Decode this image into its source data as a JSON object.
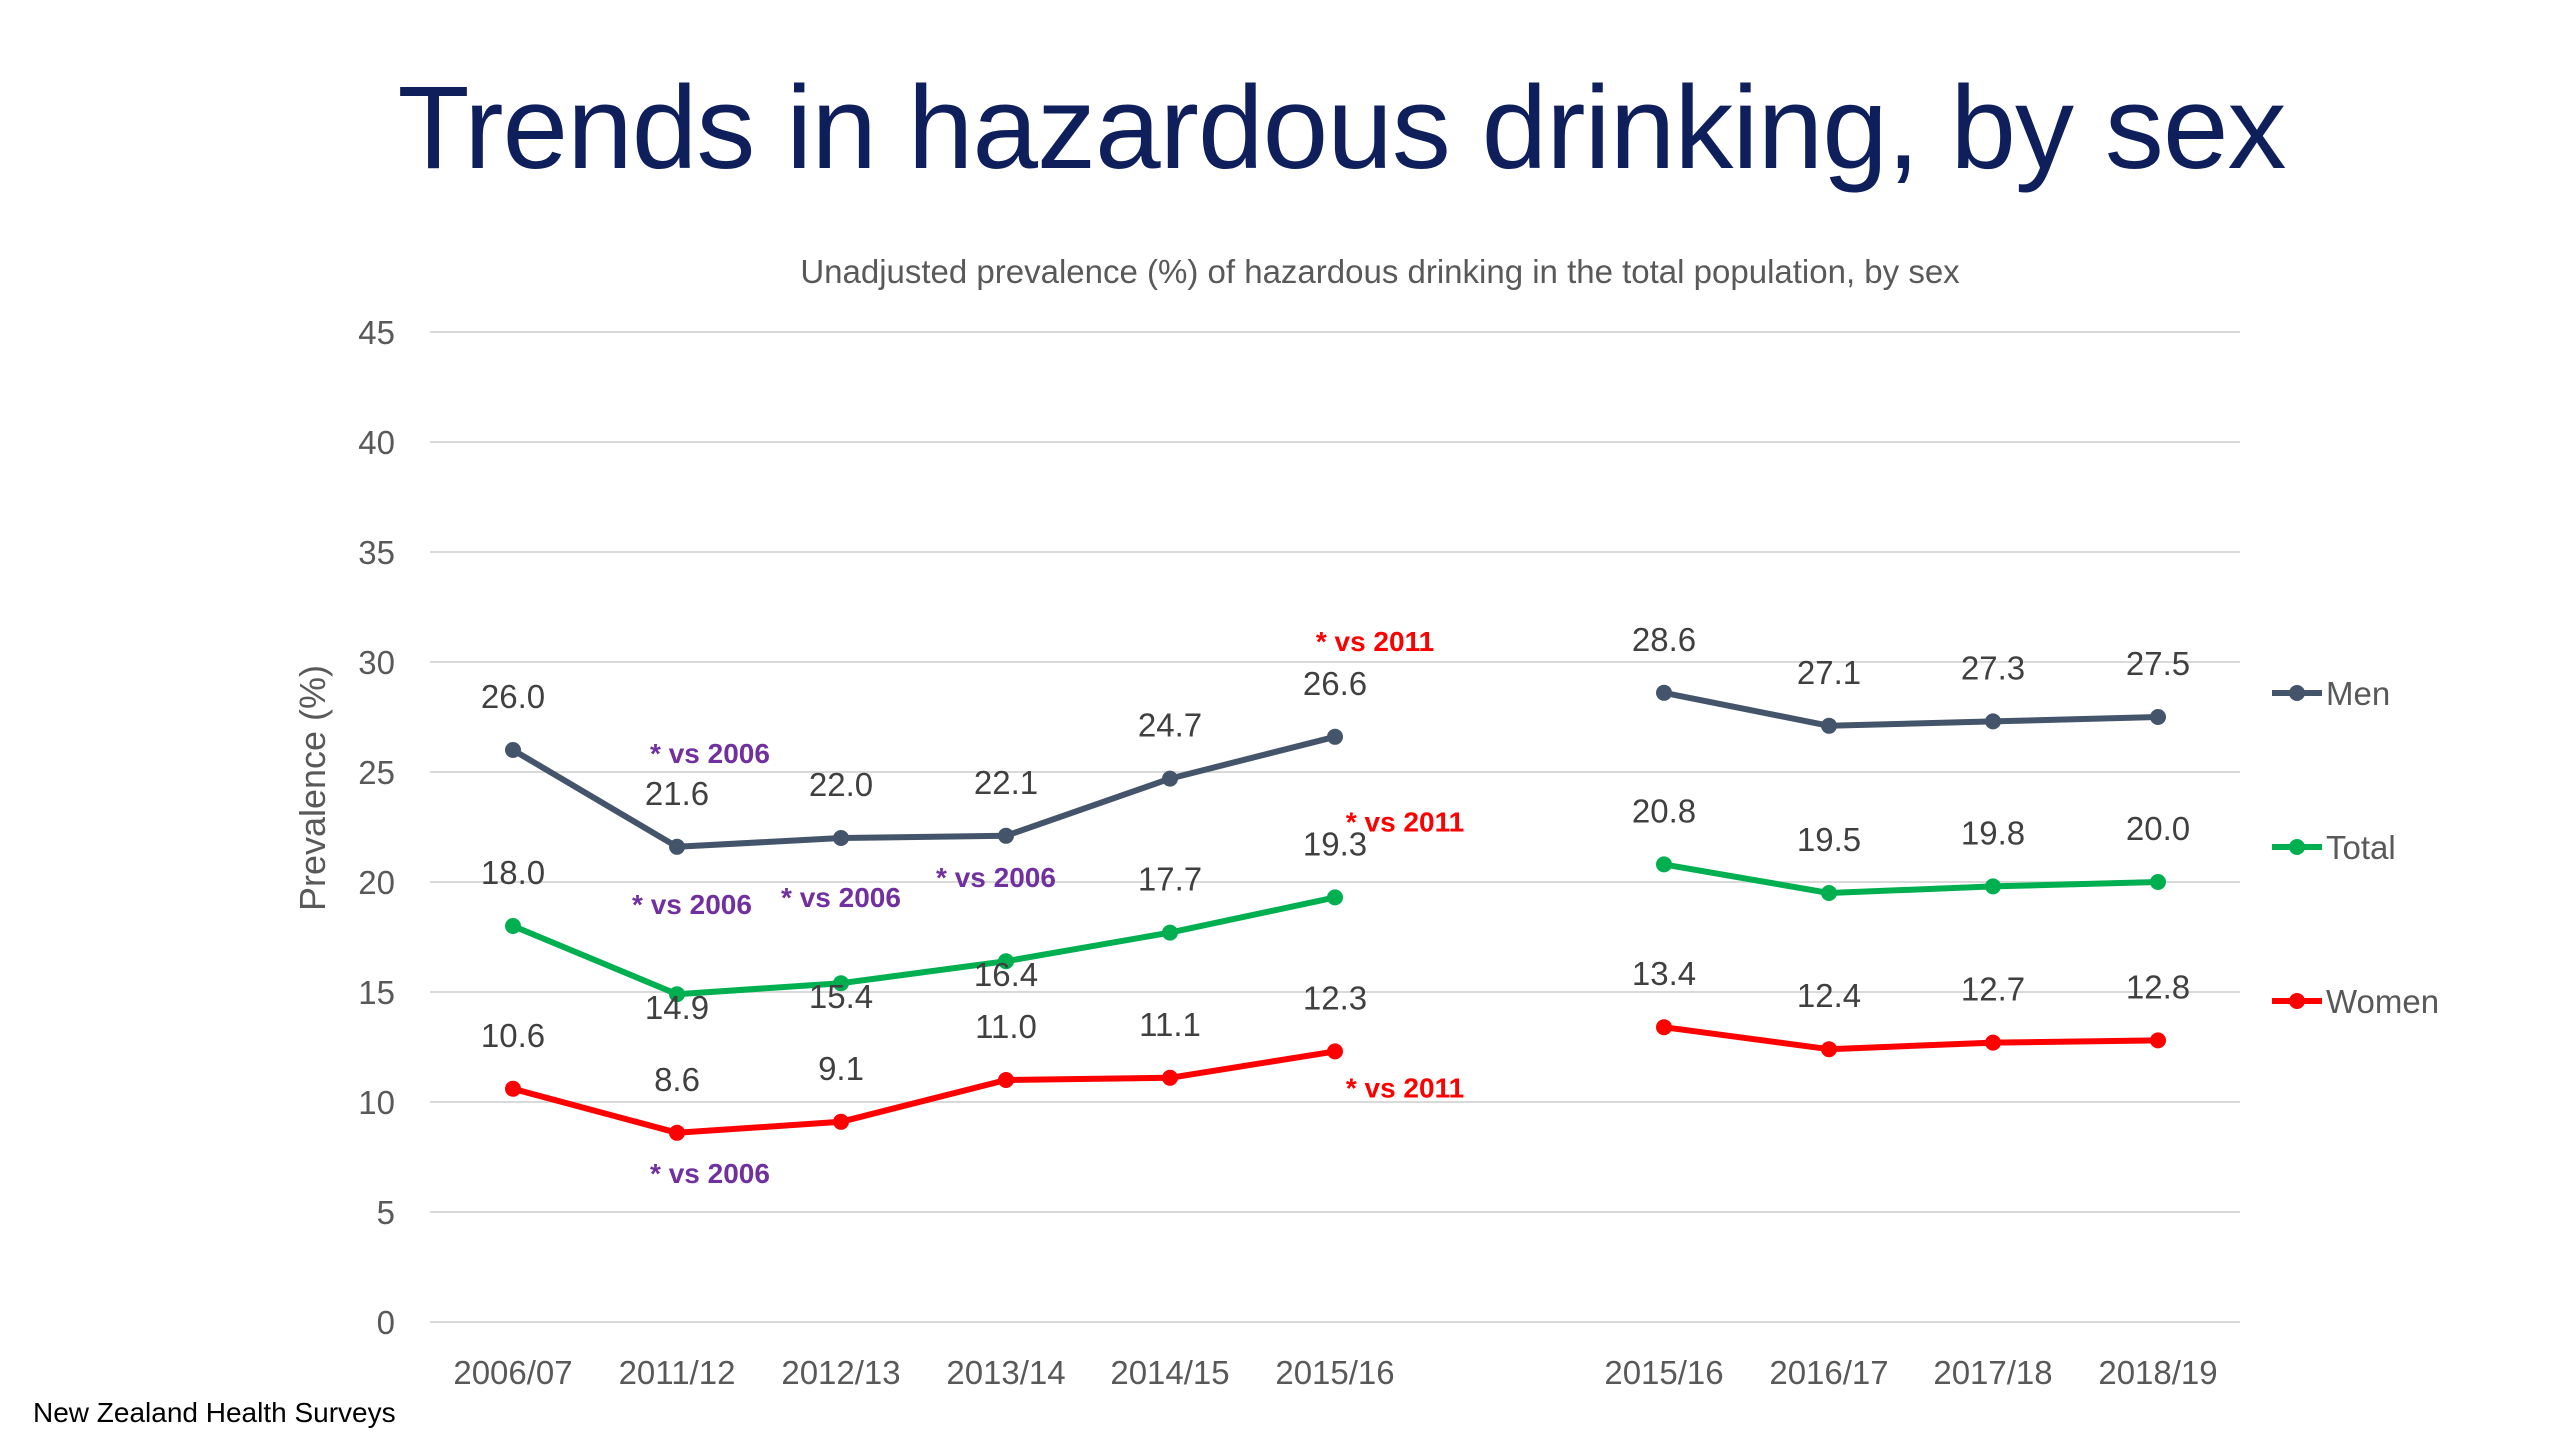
{
  "page": {
    "title": "Trends in hazardous drinking, by sex",
    "source": "New Zealand Health Surveys"
  },
  "chart_data": {
    "type": "line",
    "title": "Unadjusted prevalence (%) of hazardous drinking in the total population, by sex",
    "ylabel": "Prevalence (%)",
    "xlabel": "",
    "ylim": [
      0,
      45
    ],
    "yticks": [
      0,
      5,
      10,
      15,
      20,
      25,
      30,
      35,
      40,
      45
    ],
    "grid": true,
    "legend_position": "right",
    "categories": [
      "2006/07",
      "2011/12",
      "2012/13",
      "2013/14",
      "2014/15",
      "2015/16",
      "2015/16",
      "2016/17",
      "2017/18",
      "2018/19"
    ],
    "segments": [
      [
        0,
        5
      ],
      [
        6,
        9
      ]
    ],
    "series": [
      {
        "name": "Men",
        "color": "#44546a",
        "values": [
          26.0,
          21.6,
          22.0,
          22.1,
          24.7,
          26.6,
          28.6,
          27.1,
          27.3,
          27.5
        ]
      },
      {
        "name": "Total",
        "color": "#00b050",
        "values": [
          18.0,
          14.9,
          15.4,
          16.4,
          17.7,
          19.3,
          20.8,
          19.5,
          19.8,
          20.0
        ]
      },
      {
        "name": "Women",
        "color": "#ff0000",
        "values": [
          10.6,
          8.6,
          9.1,
          11.0,
          11.1,
          12.3,
          13.4,
          12.4,
          12.7,
          12.8
        ]
      }
    ],
    "annotations": [
      {
        "text": "* vs 2006",
        "series": "Men",
        "index": 1,
        "placement": "above",
        "color": "#7030a0"
      },
      {
        "text": "* vs 2011",
        "series": "Men",
        "index": 5,
        "placement": "above",
        "color": "#ff0000"
      },
      {
        "text": "* vs 2006",
        "series": "Total",
        "index": 1,
        "placement": "above",
        "color": "#7030a0"
      },
      {
        "text": "* vs 2006",
        "series": "Total",
        "index": 2,
        "placement": "above",
        "color": "#7030a0"
      },
      {
        "text": "* vs 2006",
        "series": "Total",
        "index": 3,
        "placement": "above",
        "color": "#7030a0"
      },
      {
        "text": "* vs 2011",
        "series": "Total",
        "index": 5,
        "placement": "above",
        "color": "#ff0000"
      },
      {
        "text": "* vs 2006",
        "series": "Women",
        "index": 1,
        "placement": "below",
        "color": "#7030a0"
      },
      {
        "text": "* vs 2011",
        "series": "Women",
        "index": 5,
        "placement": "below",
        "color": "#ff0000"
      }
    ]
  }
}
